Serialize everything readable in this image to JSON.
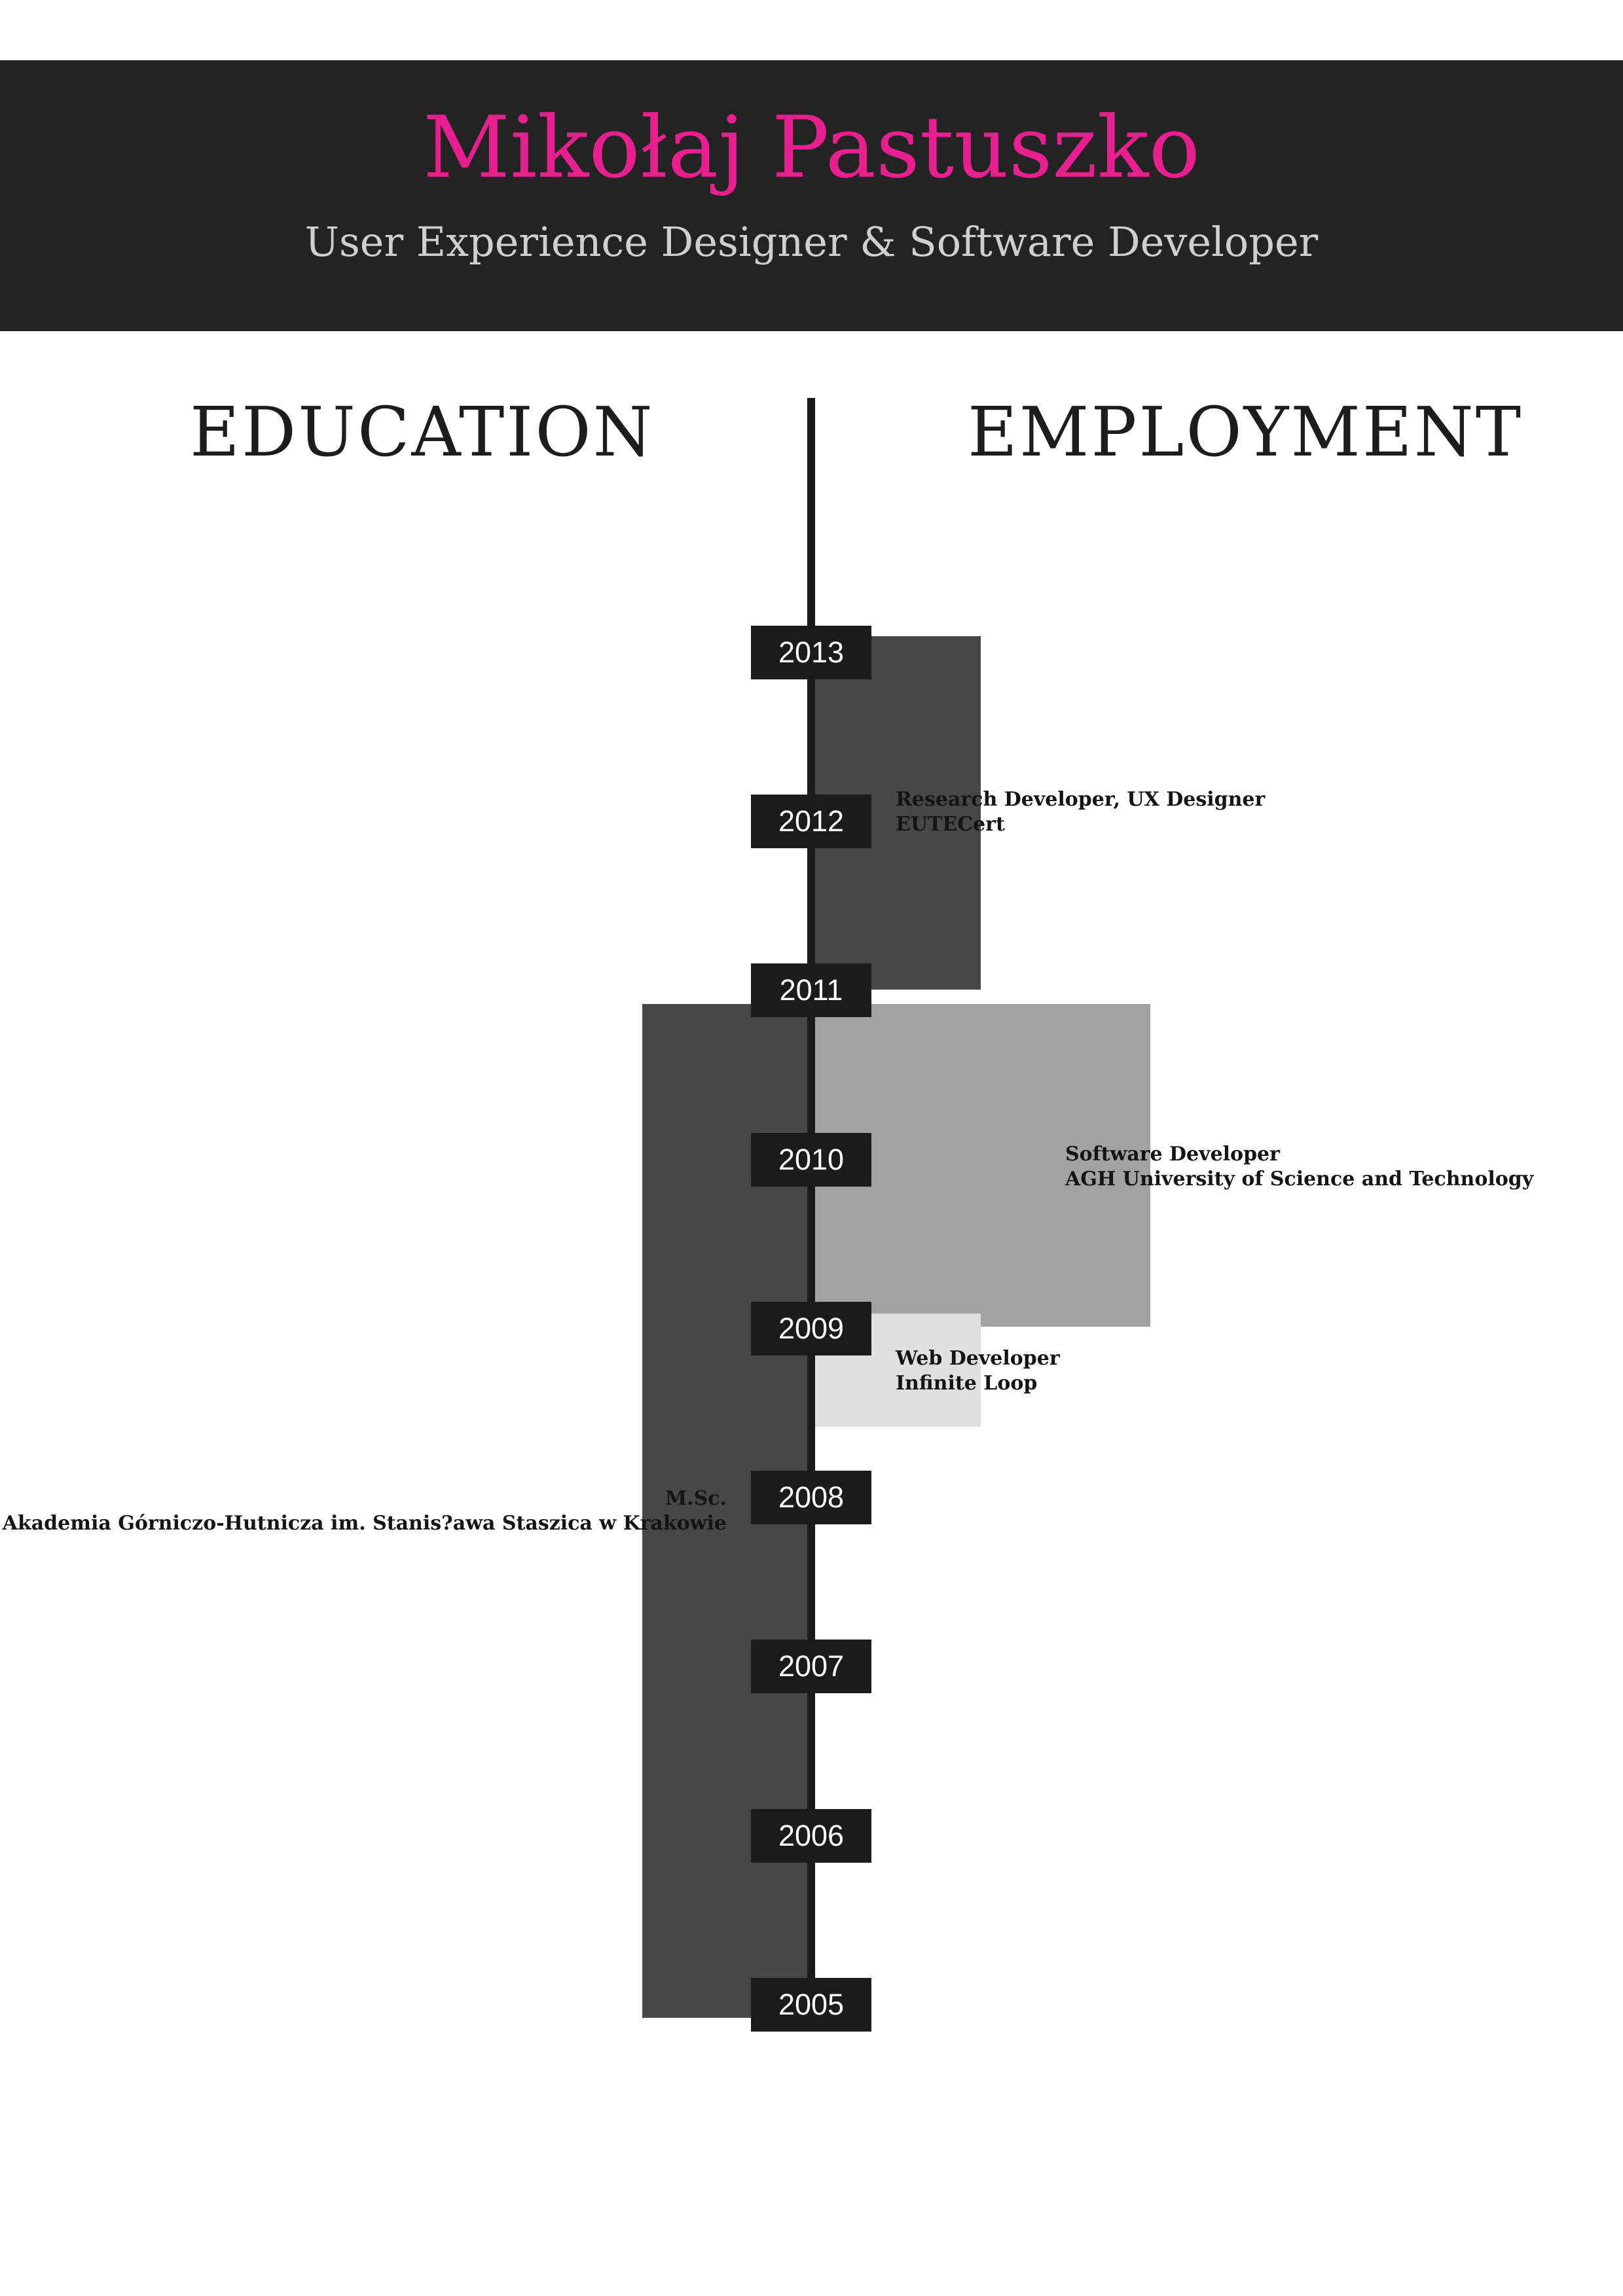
{
  "header": {
    "name": "Mikołaj Pastuszko",
    "subtitle": "User Experience Designer & Software Developer"
  },
  "sections": {
    "education": "EDUCATION",
    "employment": "EMPLOYMENT"
  },
  "timeline": {
    "years": [
      "2013",
      "2012",
      "2011",
      "2010",
      "2009",
      "2008",
      "2007",
      "2006",
      "2005"
    ]
  },
  "entries": {
    "education": {
      "degree": "M.Sc.",
      "institution": "Akademia Górniczo-Hutnicza im. Stanis?awa Staszica w Krakowie"
    },
    "eutecert": {
      "role": "Research Developer, UX Designer",
      "company": "EUTECert"
    },
    "agh": {
      "role": "Software Developer",
      "company": "AGH University of Science and Technology"
    },
    "loop": {
      "role": "Web Developer",
      "company": "Infinite Loop"
    }
  },
  "colors": {
    "accent": "#e8208f",
    "header_bg": "#232323",
    "bar_dark": "#474747",
    "bar_mid": "#a2a2a2",
    "bar_light": "#e0e0e0"
  }
}
